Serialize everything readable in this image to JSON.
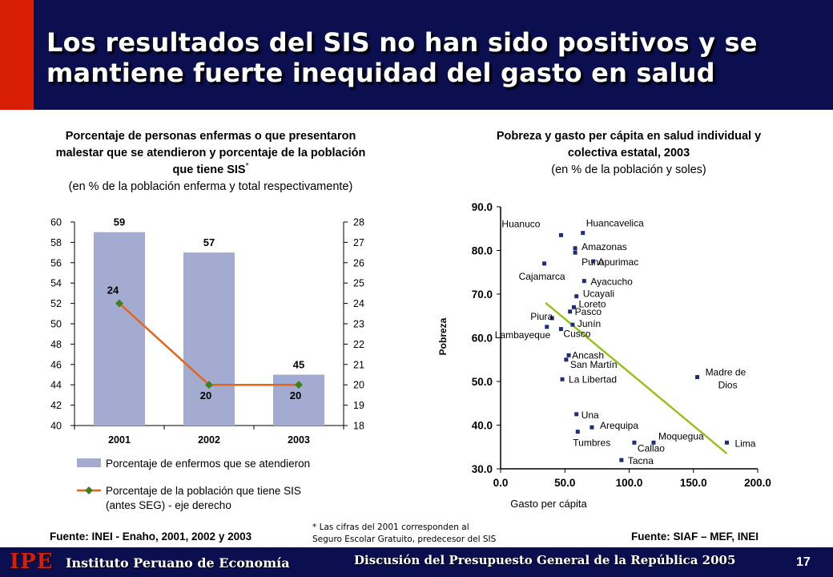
{
  "header": {
    "title": "Los resultados del SIS no han sido positivos y se mantiene fuerte inequidad del gasto en salud"
  },
  "colors": {
    "header_bg": "#0b0f4f",
    "header_accent": "#d81e05",
    "bar_fill": "#a3acd0",
    "line_orange": "#e8631a",
    "marker_green": "#3e7f1e",
    "scatter_point": "#1f2d78",
    "trend_line": "#98c11e"
  },
  "chart_left": {
    "title_bold": "Porcentaje de personas enfermas o que presentaron malestar que se atendieron y porcentaje de la población que tiene SIS",
    "title_mark": "*",
    "subtitle": "(en % de la población enferma y total respectivamente)",
    "source": "Fuente: INEI - Enaho, 2001, 2002 y 2003"
  },
  "chart_right": {
    "title_bold": "Pobreza y gasto per cápita en salud individual y colectiva estatal, 2003",
    "subtitle": "(en % de la población y soles)",
    "source": "Fuente: SIAF – MEF, INEI"
  },
  "footnote": {
    "line1": "* Las cifras del 2001 corresponden al",
    "line2": "Seguro Escolar Gratuito, predecesor del SIS"
  },
  "footer": {
    "logo": "IPE",
    "institution": "Instituto Peruano de Economía",
    "event": "Discusión del Presupuesto General de la República 2005",
    "page": "17"
  },
  "chart_data": [
    {
      "type": "bar",
      "categories": [
        "2001",
        "2002",
        "2003"
      ],
      "series": [
        {
          "name": "Porcentaje de enfermos que se atendieron",
          "chart": "bar",
          "axis": "left",
          "values": [
            59,
            57,
            45
          ],
          "labels": [
            "59",
            "57",
            "45"
          ]
        },
        {
          "name": "Porcentaje de la población que tiene SIS (antes SEG) - eje derecho",
          "name_lines": [
            "Porcentaje de la población que tiene SIS",
            "(antes SEG) - eje derecho"
          ],
          "chart": "line",
          "axis": "right",
          "values": [
            24,
            20,
            20
          ],
          "labels": [
            "24",
            "20",
            "20"
          ]
        }
      ],
      "y_left": {
        "min": 40,
        "max": 60,
        "ticks": [
          "40",
          "42",
          "44",
          "46",
          "48",
          "50",
          "52",
          "54",
          "56",
          "58",
          "60"
        ]
      },
      "y_right": {
        "min": 18,
        "max": 28,
        "ticks": [
          "18",
          "19",
          "20",
          "21",
          "22",
          "23",
          "24",
          "25",
          "26",
          "27",
          "28"
        ]
      },
      "legend_position": "bottom"
    },
    {
      "type": "scatter",
      "xlabel": "Gasto per cápita",
      "ylabel": "Pobreza",
      "xlim": [
        0,
        200
      ],
      "ylim": [
        30,
        90
      ],
      "x_ticks": [
        "0.0",
        "50.0",
        "100.0",
        "150.0",
        "200.0"
      ],
      "y_ticks": [
        "30.0",
        "40.0",
        "50.0",
        "60.0",
        "70.0",
        "80.0",
        "90.0"
      ],
      "points": [
        {
          "label": "Huanuco",
          "x": 47,
          "y": 83.5
        },
        {
          "label": "Huancavelica",
          "x": 64,
          "y": 84
        },
        {
          "label": "Amazonas",
          "x": 58,
          "y": 80.5
        },
        {
          "label": "Puno",
          "x": 58,
          "y": 79.5
        },
        {
          "label": "Apurimac",
          "x": 72,
          "y": 77.5
        },
        {
          "label": "Cajamarca",
          "x": 34,
          "y": 77
        },
        {
          "label": "Ayacucho",
          "x": 65,
          "y": 73
        },
        {
          "label": "Ucayali",
          "x": 59,
          "y": 69.5
        },
        {
          "label": "Loreto",
          "x": 57,
          "y": 67
        },
        {
          "label": "Pasco",
          "x": 54,
          "y": 66
        },
        {
          "label": "Piura",
          "x": 40,
          "y": 64.5
        },
        {
          "label": "Lambayeque",
          "x": 36,
          "y": 62.5
        },
        {
          "label": "Junín",
          "x": 56,
          "y": 63
        },
        {
          "label": "Cusco",
          "x": 47,
          "y": 62
        },
        {
          "label": "Ancash",
          "x": 53,
          "y": 56
        },
        {
          "label": "San Martín",
          "x": 51,
          "y": 55
        },
        {
          "label": "La Libertad",
          "x": 48,
          "y": 50.5
        },
        {
          "label": "Madre de Dios",
          "x": 153,
          "y": 51
        },
        {
          "label": "Una",
          "x": 59,
          "y": 42.5
        },
        {
          "label": "Arequipa",
          "x": 71,
          "y": 39.5
        },
        {
          "label": "Tumbres",
          "x": 60,
          "y": 38.5
        },
        {
          "label": "Moquegua",
          "x": 119,
          "y": 36
        },
        {
          "label": "Callao",
          "x": 104,
          "y": 36
        },
        {
          "label": "Lima",
          "x": 176,
          "y": 36
        },
        {
          "label": "Tacna",
          "x": 94,
          "y": 32
        }
      ],
      "label_text": {
        "Huanuco": "Huanuco",
        "Huancavelica": "Huancavelica",
        "Amazonas": "Amazonas",
        "Puno": "Puno",
        "Apurimac": "Apurimac",
        "Cajamarca": "Cajamarca",
        "Ayacucho": "Ayacucho",
        "Ucayali": "Ucayali",
        "Loreto": "Loreto",
        "Pasco": "Pasco",
        "Piura": "Piura",
        "Lambayeque": "Lambayeque",
        "Junín": "Junín",
        "Cusco": "Cusco",
        "Ancash": "Ancash",
        "San Martín": "San Martín",
        "La Libertad": "La Libertad",
        "Madre de Dios": "Madre de Dios",
        "Una": "Una",
        "Arequipa": "Arequipa",
        "Tumbres": "Tumbres",
        "Moquegua": "Moquegua",
        "Callao": "Callao",
        "Lima": "Lima",
        "Tacna": "Tacna"
      },
      "trend_line": {
        "x_start": 35,
        "y_start": 68,
        "x_end": 176,
        "y_end": 33.5
      }
    }
  ]
}
